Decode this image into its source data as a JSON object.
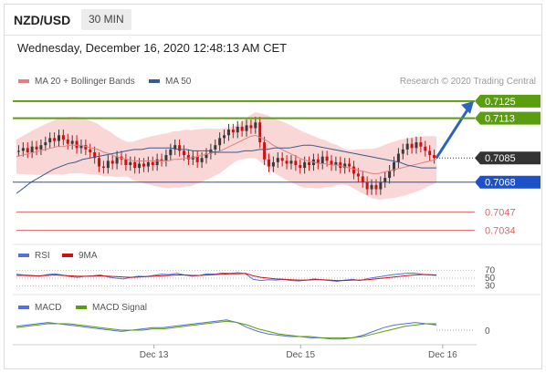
{
  "header": {
    "pair": "NZD/USD",
    "timeframe": "30 MIN",
    "timestamp": "Wednesday, December 16, 2020 12:48:13 AM CET"
  },
  "legend": {
    "ma20_bollinger": "MA 20 + Bollinger Bands",
    "ma50": "MA 50",
    "credit": "Research © 2020 Trading Central"
  },
  "colors": {
    "resistance": "#5a9e0f",
    "current": "#333333",
    "pivot": "#1e50c8",
    "support": "#e06666",
    "bollinger": "#f7c9c9",
    "ma20": "#e08080",
    "ma50": "#3a5a8c",
    "arrow": "#2e64b8",
    "candle_up": "#3a3a3a",
    "candle_down": "#d01010"
  },
  "chart_data": [
    {
      "type": "line",
      "title": "NZD/USD 30 MIN",
      "levels": [
        {
          "value": 0.7125,
          "label": "0.7125",
          "kind": "resistance"
        },
        {
          "value": 0.7113,
          "label": "0.7113",
          "kind": "resistance"
        },
        {
          "value": 0.7085,
          "label": "0.7085",
          "kind": "current"
        },
        {
          "value": 0.7068,
          "label": "0.7068",
          "kind": "pivot"
        },
        {
          "value": 0.7047,
          "label": "0.7047",
          "kind": "support"
        },
        {
          "value": 0.7034,
          "label": "0.7034",
          "kind": "support"
        }
      ],
      "close": [
        0.709,
        0.7092,
        0.7089,
        0.7093,
        0.7091,
        0.7094,
        0.7096,
        0.7099,
        0.7097,
        0.7101,
        0.7098,
        0.7095,
        0.7097,
        0.7092,
        0.7094,
        0.7091,
        0.7089,
        0.7085,
        0.7079,
        0.7078,
        0.7083,
        0.7081,
        0.7086,
        0.7084,
        0.708,
        0.7082,
        0.7078,
        0.7081,
        0.7079,
        0.7082,
        0.708,
        0.7084,
        0.7083,
        0.7087,
        0.7091,
        0.7094,
        0.709,
        0.7087,
        0.7084,
        0.7086,
        0.7082,
        0.7085,
        0.7088,
        0.7091,
        0.7094,
        0.7099,
        0.7101,
        0.7105,
        0.7103,
        0.7107,
        0.7104,
        0.7108,
        0.7106,
        0.711,
        0.7096,
        0.7084,
        0.7079,
        0.7082,
        0.7085,
        0.7083,
        0.7081,
        0.7083,
        0.708,
        0.7078,
        0.7082,
        0.708,
        0.7084,
        0.7081,
        0.7086,
        0.7083,
        0.708,
        0.7082,
        0.7078,
        0.7081,
        0.7079,
        0.7074,
        0.7072,
        0.7068,
        0.7063,
        0.7066,
        0.7063,
        0.7068,
        0.7071,
        0.7076,
        0.7082,
        0.7088,
        0.7091,
        0.7095,
        0.7092,
        0.7096,
        0.7093,
        0.709,
        0.7087,
        0.7085
      ],
      "ma20": [
        0.7086,
        0.7087,
        0.7088,
        0.7089,
        0.709,
        0.7091,
        0.7092,
        0.7093,
        0.7093,
        0.7094,
        0.7094,
        0.7094,
        0.7093,
        0.7092,
        0.7091,
        0.7089,
        0.7088,
        0.7086,
        0.7085,
        0.7084,
        0.7083,
        0.7083,
        0.7083,
        0.7083,
        0.7083,
        0.7083,
        0.7083,
        0.7084,
        0.7084,
        0.7085,
        0.7085,
        0.7086,
        0.7087,
        0.7088,
        0.7089,
        0.709,
        0.7092,
        0.7094,
        0.7096,
        0.7098,
        0.71,
        0.7101,
        0.7099,
        0.7097,
        0.7094,
        0.7092,
        0.709,
        0.7088,
        0.7086,
        0.7084,
        0.7083,
        0.7082,
        0.7081,
        0.7081,
        0.708,
        0.708,
        0.7079,
        0.7078,
        0.7077,
        0.7076,
        0.7075,
        0.7074,
        0.7074,
        0.7075,
        0.7076,
        0.7077,
        0.7078,
        0.7079,
        0.708,
        0.7081,
        0.7082,
        0.7083,
        0.7084
      ],
      "ma50": [
        0.706,
        0.7064,
        0.7068,
        0.7071,
        0.7074,
        0.7077,
        0.7079,
        0.7081,
        0.7082,
        0.7084,
        0.7085,
        0.7086,
        0.7087,
        0.7088,
        0.7089,
        0.709,
        0.7091,
        0.7091,
        0.7092,
        0.7092,
        0.7092,
        0.7092,
        0.7091,
        0.7091,
        0.709,
        0.709,
        0.709,
        0.7089,
        0.7089,
        0.7089,
        0.7089,
        0.709,
        0.709,
        0.7091,
        0.7091,
        0.7092,
        0.7092,
        0.7092,
        0.7093,
        0.7094,
        0.7094,
        0.7093,
        0.7092,
        0.7091,
        0.709,
        0.7089,
        0.7088,
        0.7087,
        0.7086,
        0.7085,
        0.7084,
        0.7083,
        0.7082,
        0.708,
        0.7079,
        0.7078,
        0.7078,
        0.7078
      ],
      "projection": {
        "from": 0.7085,
        "to": 0.7125
      }
    },
    {
      "type": "line",
      "title": "RSI",
      "series": [
        {
          "name": "RSI",
          "values": [
            60,
            58,
            57,
            55,
            59,
            61,
            58,
            54,
            52,
            55,
            56,
            58,
            53,
            50,
            48,
            52,
            55,
            54,
            57,
            60,
            59,
            62,
            58,
            55,
            57,
            61,
            60,
            63,
            62,
            64,
            61,
            47,
            44,
            46,
            45,
            47,
            44,
            43,
            45,
            48,
            46,
            44,
            42,
            45,
            47,
            44,
            49,
            52,
            55,
            58,
            60,
            62,
            63,
            60,
            58,
            57
          ]
        },
        {
          "name": "9MA",
          "values": [
            57,
            57,
            56,
            56,
            57,
            58,
            57,
            56,
            55,
            55,
            55,
            56,
            55,
            54,
            53,
            52,
            53,
            54,
            55,
            56,
            57,
            58,
            58,
            57,
            57,
            58,
            59,
            60,
            61,
            61,
            62,
            56,
            52,
            50,
            48,
            47,
            46,
            45,
            45,
            46,
            46,
            45,
            44,
            44,
            45,
            45,
            46,
            48,
            50,
            52,
            54,
            56,
            58,
            59,
            59,
            58
          ]
        }
      ],
      "levels": [
        {
          "value": 70,
          "label": "70"
        },
        {
          "value": 50,
          "label": "50"
        },
        {
          "value": 30,
          "label": "30"
        }
      ],
      "ylim": [
        20,
        80
      ]
    },
    {
      "type": "line",
      "title": "MACD",
      "series": [
        {
          "name": "MACD",
          "values": [
            0.0003,
            0.0004,
            0.0005,
            0.0006,
            0.0005,
            0.0004,
            0.0003,
            0.0002,
            0.0001,
            0.0,
            -0.0001,
            0.0,
            0.0001,
            0.0002,
            0.0002,
            0.0003,
            0.0004,
            0.0005,
            0.0006,
            0.0007,
            0.0008,
            0.0006,
            0.0002,
            -0.0001,
            -0.0003,
            -0.0004,
            -0.0005,
            -0.0005,
            -0.0006,
            -0.0006,
            -0.0007,
            -0.0007,
            -0.0006,
            -0.0004,
            -0.0001,
            0.0002,
            0.0004,
            0.0005,
            0.0006,
            0.0005,
            0.0004
          ]
        },
        {
          "name": "MACD Signal",
          "values": [
            0.0002,
            0.0003,
            0.0004,
            0.0005,
            0.0005,
            0.0005,
            0.0004,
            0.0003,
            0.0002,
            0.0001,
            0.0,
            0.0,
            0.0,
            0.0001,
            0.0001,
            0.0002,
            0.0003,
            0.0004,
            0.0005,
            0.0006,
            0.0007,
            0.0006,
            0.0004,
            0.0001,
            -0.0001,
            -0.0003,
            -0.0004,
            -0.0005,
            -0.0005,
            -0.0006,
            -0.0006,
            -0.0006,
            -0.0006,
            -0.0005,
            -0.0003,
            -0.0001,
            0.0001,
            0.0003,
            0.0004,
            0.0005,
            0.0005
          ]
        }
      ],
      "levels": [
        {
          "value": 0,
          "label": "0"
        }
      ],
      "ylim": [
        -0.001,
        0.001
      ]
    }
  ],
  "xaxis": {
    "ticks": [
      {
        "label": "Dec 13",
        "pos": 0.3
      },
      {
        "label": "Dec 15",
        "pos": 0.62
      },
      {
        "label": "Dec 16",
        "pos": 0.93
      }
    ]
  },
  "rsi_legend": {
    "rsi": "RSI",
    "ma": "9MA"
  },
  "macd_legend": {
    "macd": "MACD",
    "signal": "MACD Signal"
  }
}
